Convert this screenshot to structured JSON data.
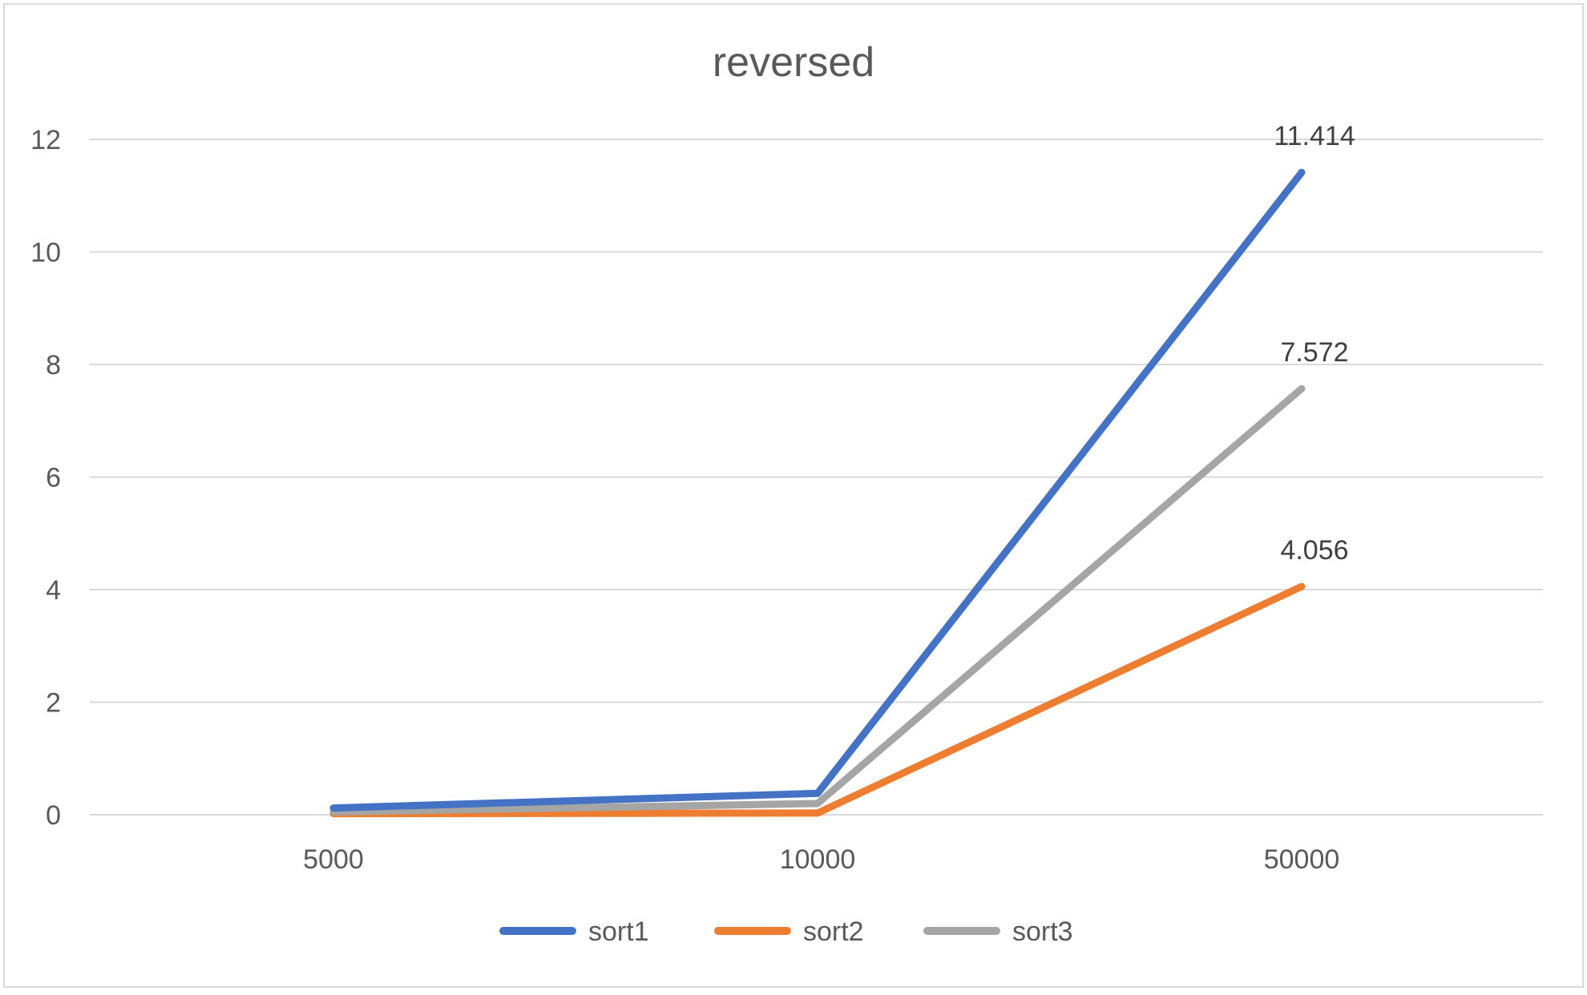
{
  "chart_data": {
    "type": "line",
    "title": "reversed",
    "xlabel": "",
    "ylabel": "",
    "categories": [
      "5000",
      "10000",
      "50000"
    ],
    "ylim": [
      0,
      12
    ],
    "yticks": [
      0,
      2,
      4,
      6,
      8,
      10,
      12
    ],
    "grid": true,
    "legend_position": "bottom",
    "series": [
      {
        "name": "sort1",
        "color": "#4472C4",
        "values": [
          0.12,
          0.38,
          11.414
        ]
      },
      {
        "name": "sort2",
        "color": "#ED7D31",
        "values": [
          0.02,
          0.03,
          4.056
        ]
      },
      {
        "name": "sort3",
        "color": "#A5A5A5",
        "values": [
          0.05,
          0.2,
          7.572
        ]
      }
    ],
    "data_labels": [
      {
        "series": "sort1",
        "category": "50000",
        "text": "11.414"
      },
      {
        "series": "sort3",
        "category": "50000",
        "text": "7.572"
      },
      {
        "series": "sort2",
        "category": "50000",
        "text": "4.056"
      }
    ]
  }
}
